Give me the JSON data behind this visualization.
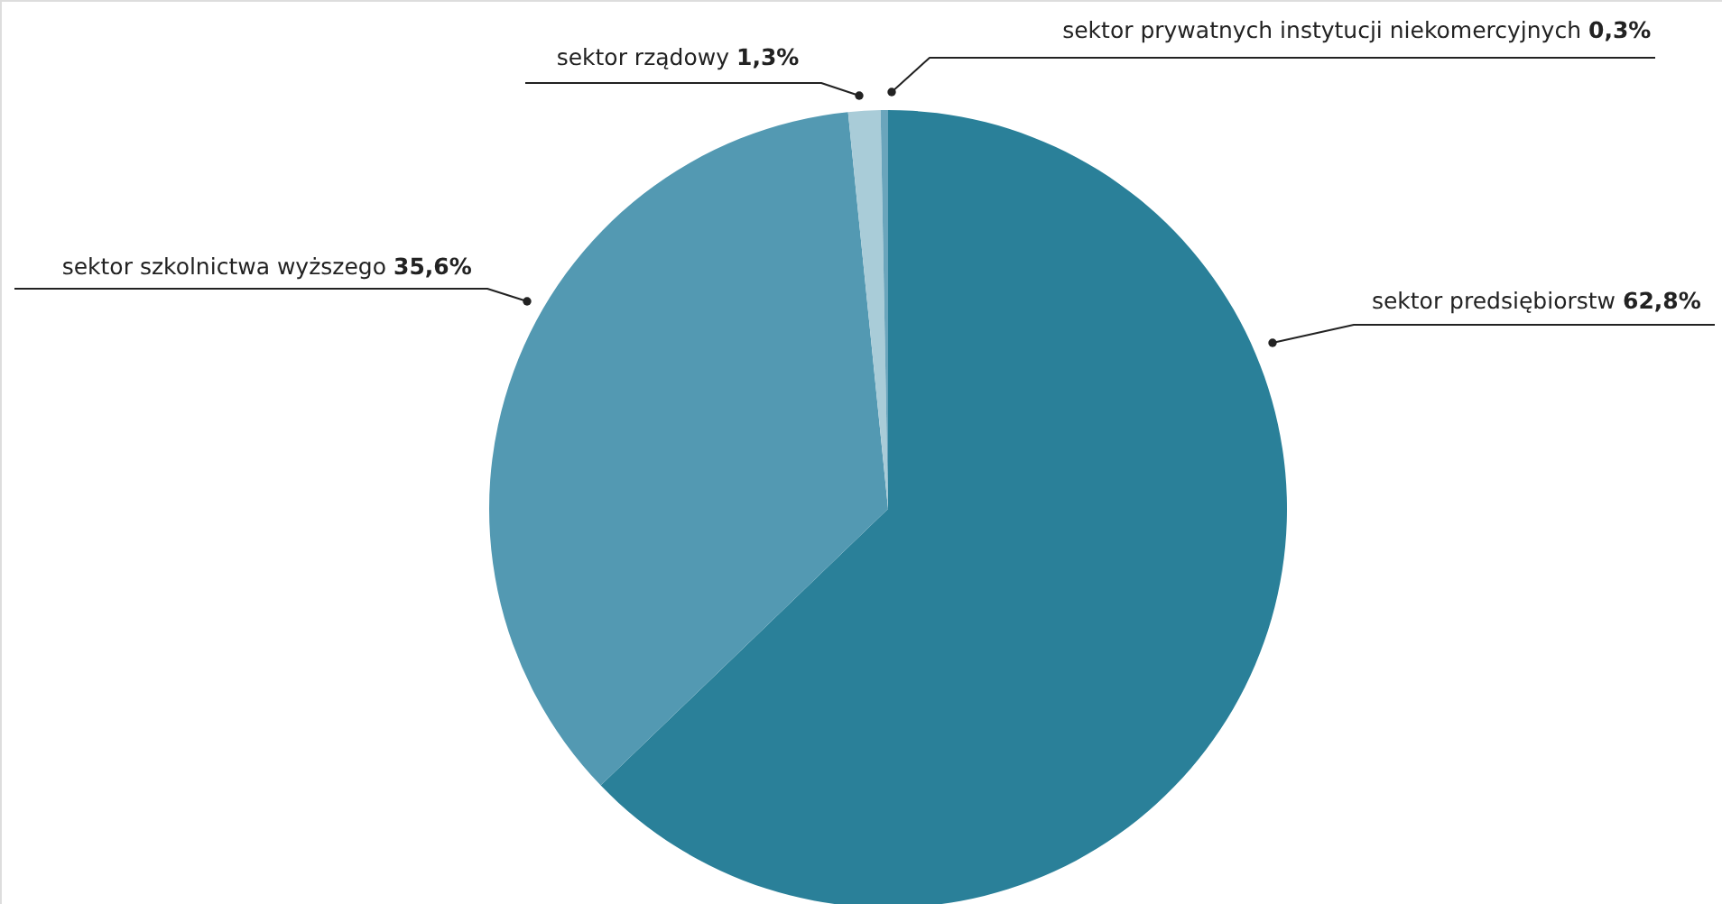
{
  "chart_data": {
    "type": "pie",
    "categories": [
      "sektor predsiębiorstw",
      "sektor szkolnictwa wyższego",
      "sektor rządowy",
      "sektor prywatnych instytucji niekomercyjnych"
    ],
    "values": [
      62.8,
      35.6,
      1.3,
      0.3
    ],
    "colors": [
      "#2a8099",
      "#5399b2",
      "#a9ccd8",
      "#6aa5bc"
    ],
    "value_labels": [
      "62,8%",
      "35,6%",
      "1,3%",
      "0,3%"
    ]
  }
}
